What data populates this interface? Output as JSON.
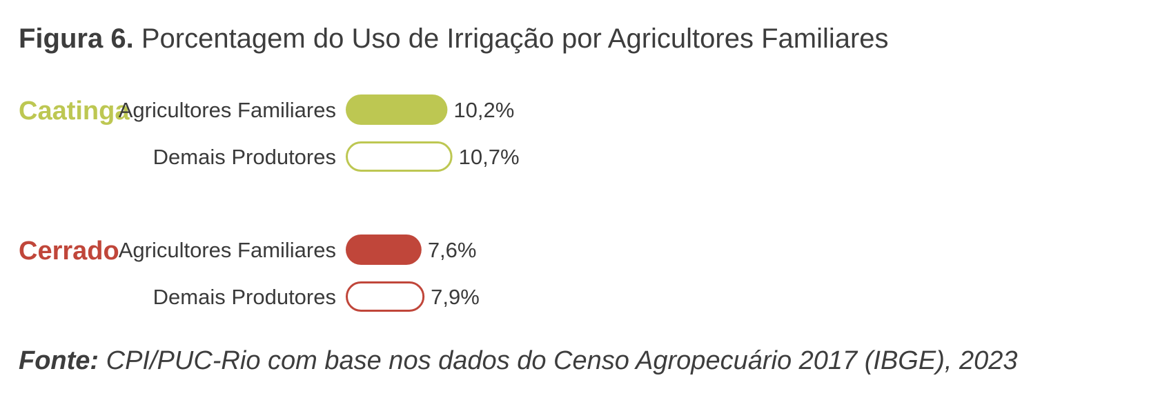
{
  "figure": {
    "title_prefix": "Figura 6.",
    "title": "Porcentagem do Uso de Irrigação por Agricultores Familiares"
  },
  "chart_data": {
    "type": "bar",
    "orientation": "horizontal",
    "groups": [
      {
        "name": "Caatinga",
        "color": "#bdc752",
        "bars": [
          {
            "label": "Agricultores Familiares",
            "value": 10.2,
            "display": "10,2%",
            "filled": true
          },
          {
            "label": "Demais Produtores",
            "value": 10.7,
            "display": "10,7%",
            "filled": false
          }
        ]
      },
      {
        "name": "Cerrado",
        "color": "#c0463a",
        "bars": [
          {
            "label": "Agricultores Familiares",
            "value": 7.6,
            "display": "7,6%",
            "filled": true
          },
          {
            "label": "Demais Produtores",
            "value": 7.9,
            "display": "7,9%",
            "filled": false
          }
        ]
      }
    ],
    "unit": "%"
  },
  "source": {
    "prefix": "Fonte:",
    "text": "CPI/PUC-Rio com base nos dados do Censo Agropecuário 2017 (IBGE), 2023"
  }
}
